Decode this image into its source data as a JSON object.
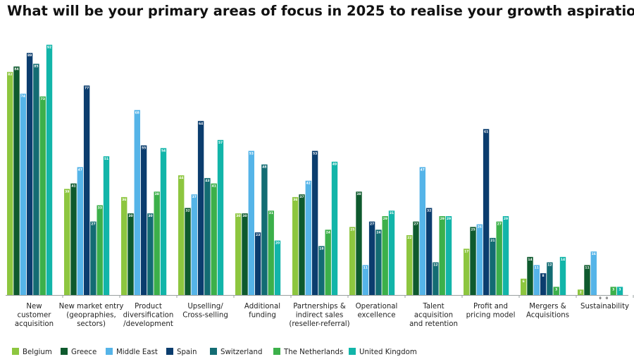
{
  "chart_data": {
    "type": "bar",
    "title": "What will be your primary areas of focus in 2025 to realise your growth aspirations?",
    "xlabel": "",
    "ylabel": "",
    "ylim": [
      0,
      95
    ],
    "grid": false,
    "legend_position": "bottom-left",
    "categories": [
      [
        "New",
        "customer",
        "acquisition"
      ],
      [
        "New market entry",
        "(geopraphies,",
        "sectors)"
      ],
      [
        "Product",
        "diversification",
        "/development"
      ],
      [
        "Upselling/",
        "Cross-selling"
      ],
      [
        "Additional",
        "funding"
      ],
      [
        "Partnerships &",
        "indirect sales",
        "(reseller-referral)"
      ],
      [
        "Operational",
        "excellence"
      ],
      [
        "Talent",
        "acquisition",
        "and retention"
      ],
      [
        "Profit and",
        "pricing model"
      ],
      [
        "Mergers &",
        "Acquisitions"
      ],
      [
        "Sustainability"
      ]
    ],
    "series": [
      {
        "name": "Belgium",
        "color": "#8dc63f",
        "values": [
          82,
          39,
          36,
          44,
          30,
          36,
          25,
          22,
          17,
          6,
          2
        ]
      },
      {
        "name": "Greece",
        "color": "#0e5a2e",
        "values": [
          84,
          41,
          30,
          32,
          30,
          37,
          38,
          27,
          25,
          14,
          11
        ]
      },
      {
        "name": "Middle East",
        "color": "#55b4e8",
        "values": [
          74,
          47,
          68,
          37,
          53,
          42,
          11,
          47,
          26,
          11,
          16
        ]
      },
      {
        "name": "Spain",
        "color": "#0b3d6e",
        "values": [
          89,
          77,
          55,
          64,
          23,
          53,
          27,
          32,
          61,
          8,
          0
        ]
      },
      {
        "name": "Switzerland",
        "color": "#136c73",
        "values": [
          85,
          27,
          30,
          43,
          48,
          18,
          24,
          12,
          21,
          12,
          0
        ]
      },
      {
        "name": "The Netherlands",
        "color": "#3cb04a",
        "values": [
          73,
          33,
          38,
          41,
          31,
          24,
          29,
          29,
          27,
          3,
          3
        ]
      },
      {
        "name": "United Kingdom",
        "color": "#12b5a9",
        "values": [
          92,
          51,
          54,
          57,
          20,
          49,
          31,
          29,
          29,
          14,
          3
        ]
      }
    ],
    "annotations": [
      "0",
      "0"
    ]
  }
}
